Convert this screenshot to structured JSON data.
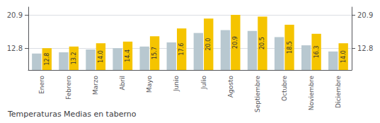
{
  "chart_data": {
    "type": "bar",
    "title": "Temperaturas Medias en taberno",
    "categories": [
      "Enero",
      "Febrero",
      "Marzo",
      "Abril",
      "Mayo",
      "Junio",
      "Julio",
      "Agosto",
      "Septiembre",
      "Octubre",
      "Noviembre",
      "Diciembre"
    ],
    "series": [
      {
        "color": "#B8C8D0",
        "values": [
          11.5,
          11.8,
          12.5,
          12.8,
          13.2,
          14.2,
          16.5,
          17.2,
          17.0,
          15.5,
          13.5,
          12.0
        ]
      },
      {
        "color": "#F5C400",
        "values": [
          12.8,
          13.2,
          14.0,
          14.4,
          15.7,
          17.6,
          20.0,
          20.9,
          20.5,
          18.5,
          16.3,
          14.0
        ],
        "value_labels": [
          "12.8",
          "13.2",
          "14.0",
          "14.4",
          "15.7",
          "17.6",
          "20.0",
          "20.9",
          "20.5",
          "18.5",
          "16.3",
          "14.0"
        ],
        "data_labels": true
      }
    ],
    "ylim": [
      7.5,
      22.8
    ],
    "yticks": [
      12.8,
      20.9
    ],
    "y2lim": [
      7.5,
      22.8
    ],
    "y2ticks": [
      12.8,
      20.9
    ],
    "grid": true
  }
}
